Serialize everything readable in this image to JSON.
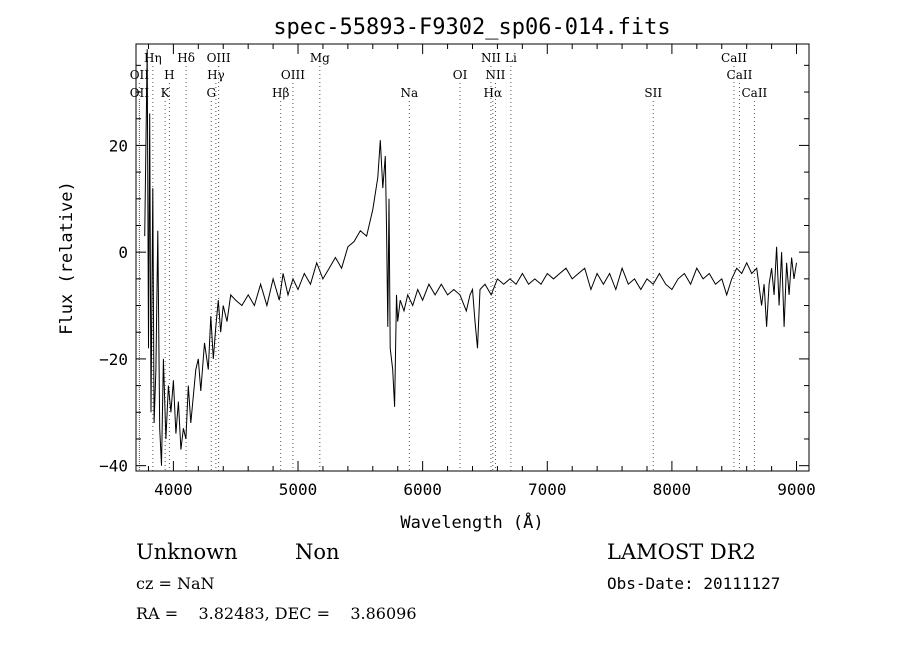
{
  "chart_data": {
    "type": "line",
    "title": "spec-55893-F9302_sp06-014.fits",
    "xlabel": "Wavelength (Å)",
    "ylabel": "Flux (relative)",
    "xlim": [
      3700,
      9100
    ],
    "ylim": [
      -41,
      39
    ],
    "xticks": [
      4000,
      5000,
      6000,
      7000,
      8000,
      9000
    ],
    "yticks": [
      -40,
      -20,
      0,
      20
    ],
    "grid": false,
    "series": [
      {
        "color": "#000000",
        "points": [
          [
            3770,
            3
          ],
          [
            3790,
            38
          ],
          [
            3800,
            -18
          ],
          [
            3810,
            26
          ],
          [
            3820,
            -30
          ],
          [
            3835,
            12
          ],
          [
            3845,
            -32
          ],
          [
            3860,
            -22
          ],
          [
            3875,
            4
          ],
          [
            3890,
            -33
          ],
          [
            3905,
            -40
          ],
          [
            3920,
            -20
          ],
          [
            3940,
            -35
          ],
          [
            3960,
            -25
          ],
          [
            3980,
            -30
          ],
          [
            4000,
            -24
          ],
          [
            4020,
            -34
          ],
          [
            4040,
            -28
          ],
          [
            4060,
            -37
          ],
          [
            4080,
            -33
          ],
          [
            4100,
            -35
          ],
          [
            4120,
            -25
          ],
          [
            4140,
            -32
          ],
          [
            4160,
            -27
          ],
          [
            4180,
            -22
          ],
          [
            4200,
            -20
          ],
          [
            4220,
            -26
          ],
          [
            4250,
            -17
          ],
          [
            4280,
            -22
          ],
          [
            4300,
            -12
          ],
          [
            4320,
            -20
          ],
          [
            4340,
            -14
          ],
          [
            4360,
            -9
          ],
          [
            4380,
            -15
          ],
          [
            4400,
            -10
          ],
          [
            4430,
            -13
          ],
          [
            4460,
            -8
          ],
          [
            4500,
            -9
          ],
          [
            4550,
            -10
          ],
          [
            4600,
            -8
          ],
          [
            4650,
            -10
          ],
          [
            4700,
            -6
          ],
          [
            4750,
            -10
          ],
          [
            4800,
            -5
          ],
          [
            4850,
            -9
          ],
          [
            4880,
            -4
          ],
          [
            4920,
            -8
          ],
          [
            4960,
            -5
          ],
          [
            5000,
            -7
          ],
          [
            5050,
            -4
          ],
          [
            5100,
            -6
          ],
          [
            5150,
            -2
          ],
          [
            5200,
            -5
          ],
          [
            5250,
            -3
          ],
          [
            5300,
            -1
          ],
          [
            5350,
            -3
          ],
          [
            5400,
            1
          ],
          [
            5450,
            2
          ],
          [
            5500,
            4
          ],
          [
            5550,
            3
          ],
          [
            5600,
            8
          ],
          [
            5640,
            14
          ],
          [
            5660,
            21
          ],
          [
            5680,
            12
          ],
          [
            5700,
            18
          ],
          [
            5710,
            5
          ],
          [
            5720,
            -14
          ],
          [
            5730,
            10
          ],
          [
            5740,
            -18
          ],
          [
            5760,
            -22
          ],
          [
            5775,
            -29
          ],
          [
            5790,
            -8
          ],
          [
            5800,
            -13
          ],
          [
            5820,
            -9
          ],
          [
            5850,
            -11
          ],
          [
            5880,
            -8
          ],
          [
            5920,
            -10
          ],
          [
            5960,
            -7
          ],
          [
            6000,
            -9
          ],
          [
            6050,
            -6
          ],
          [
            6100,
            -8
          ],
          [
            6150,
            -6
          ],
          [
            6200,
            -8
          ],
          [
            6250,
            -7
          ],
          [
            6300,
            -8
          ],
          [
            6350,
            -11
          ],
          [
            6380,
            -8
          ],
          [
            6400,
            -7
          ],
          [
            6420,
            -13
          ],
          [
            6440,
            -18
          ],
          [
            6460,
            -7
          ],
          [
            6500,
            -6
          ],
          [
            6550,
            -8
          ],
          [
            6600,
            -5
          ],
          [
            6650,
            -6
          ],
          [
            6700,
            -5
          ],
          [
            6750,
            -6
          ],
          [
            6800,
            -4
          ],
          [
            6850,
            -6
          ],
          [
            6900,
            -5
          ],
          [
            6950,
            -6
          ],
          [
            7000,
            -4
          ],
          [
            7050,
            -5
          ],
          [
            7100,
            -4
          ],
          [
            7150,
            -3
          ],
          [
            7200,
            -5
          ],
          [
            7250,
            -4
          ],
          [
            7300,
            -3
          ],
          [
            7350,
            -7
          ],
          [
            7400,
            -4
          ],
          [
            7450,
            -6
          ],
          [
            7500,
            -4
          ],
          [
            7550,
            -7
          ],
          [
            7600,
            -3
          ],
          [
            7650,
            -6
          ],
          [
            7700,
            -5
          ],
          [
            7750,
            -7
          ],
          [
            7800,
            -5
          ],
          [
            7850,
            -6
          ],
          [
            7900,
            -4
          ],
          [
            7950,
            -6
          ],
          [
            8000,
            -7
          ],
          [
            8050,
            -5
          ],
          [
            8100,
            -4
          ],
          [
            8150,
            -6
          ],
          [
            8200,
            -3
          ],
          [
            8250,
            -5
          ],
          [
            8300,
            -4
          ],
          [
            8350,
            -6
          ],
          [
            8400,
            -5
          ],
          [
            8440,
            -8
          ],
          [
            8480,
            -5
          ],
          [
            8520,
            -3
          ],
          [
            8560,
            -4
          ],
          [
            8600,
            -2
          ],
          [
            8640,
            -4
          ],
          [
            8680,
            -3
          ],
          [
            8720,
            -10
          ],
          [
            8740,
            -6
          ],
          [
            8760,
            -14
          ],
          [
            8780,
            -6
          ],
          [
            8800,
            -3
          ],
          [
            8820,
            -8
          ],
          [
            8840,
            1
          ],
          [
            8860,
            -10
          ],
          [
            8880,
            0
          ],
          [
            8900,
            -14
          ],
          [
            8920,
            -2
          ],
          [
            8940,
            -8
          ],
          [
            8960,
            -1
          ],
          [
            8980,
            -5
          ],
          [
            9000,
            -2
          ]
        ]
      }
    ],
    "line_markers": [
      {
        "label": "OII",
        "x": 3727,
        "row": 2
      },
      {
        "label": "OII",
        "x": 3727,
        "row": 3
      },
      {
        "label": "Hη",
        "x": 3835,
        "row": 1
      },
      {
        "label": "H",
        "x": 3968,
        "row": 2
      },
      {
        "label": "K",
        "x": 3934,
        "row": 3
      },
      {
        "label": "Hδ",
        "x": 4102,
        "row": 1
      },
      {
        "label": "OIII",
        "x": 4363,
        "row": 1
      },
      {
        "label": "Hγ",
        "x": 4341,
        "row": 2
      },
      {
        "label": "G",
        "x": 4304,
        "row": 3
      },
      {
        "label": "Hβ",
        "x": 4861,
        "row": 3
      },
      {
        "label": "OIII",
        "x": 4959,
        "row": 2
      },
      {
        "label": "Mg",
        "x": 5175,
        "row": 1
      },
      {
        "label": "Na",
        "x": 5893,
        "row": 3
      },
      {
        "label": "OI",
        "x": 6300,
        "row": 2
      },
      {
        "label": "NII",
        "x": 6548,
        "row": 1
      },
      {
        "label": "Li",
        "x": 6708,
        "row": 1
      },
      {
        "label": "NII",
        "x": 6584,
        "row": 2
      },
      {
        "label": "Hα",
        "x": 6563,
        "row": 3
      },
      {
        "label": "SII",
        "x": 7850,
        "row": 3
      },
      {
        "label": "CaII",
        "x": 8498,
        "row": 1
      },
      {
        "label": "CaII",
        "x": 8542,
        "row": 2
      },
      {
        "label": "CaII",
        "x": 8662,
        "row": 3
      }
    ]
  },
  "info": {
    "object_class": "Unknown",
    "subclass": "Non",
    "survey": "LAMOST DR2",
    "cz": "cz = NaN",
    "obs_date": "Obs-Date: 20111127",
    "radec": "RA =    3.82483, DEC =    3.86096"
  }
}
